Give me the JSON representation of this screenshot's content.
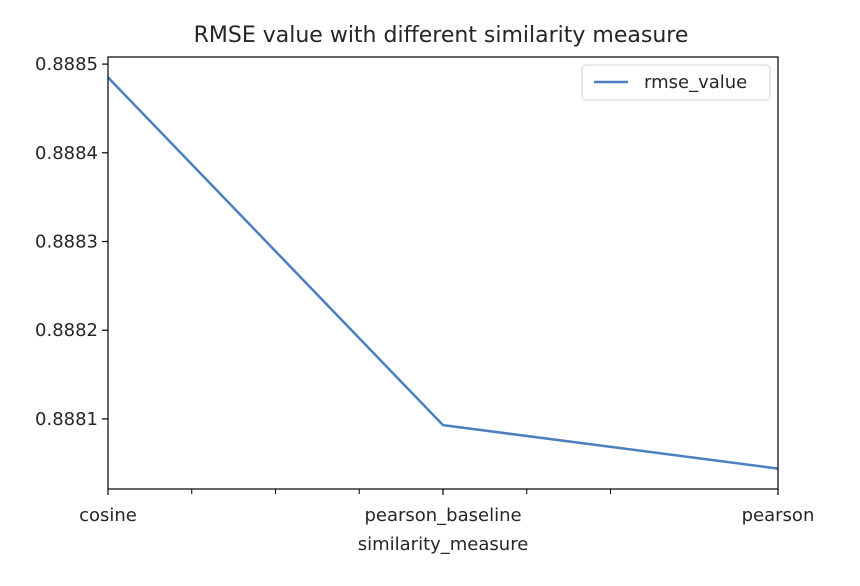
{
  "chart_data": {
    "type": "line",
    "title": "RMSE value with different similarity measure",
    "xlabel": "similarity_measure",
    "ylabel": "",
    "categories": [
      "cosine",
      "pearson_baseline",
      "pearson"
    ],
    "series": [
      {
        "name": "rmse_value",
        "values": [
          0.888485,
          0.888093,
          0.888044
        ],
        "color": "#4c7fbe"
      }
    ],
    "yticks": [
      0.8881,
      0.8882,
      0.8883,
      0.8884,
      0.8885
    ],
    "ytick_labels": [
      "0.8881",
      "0.8882",
      "0.8883",
      "0.8884",
      "0.8885"
    ],
    "ylim": [
      0.888021,
      0.888508
    ],
    "xlim": [
      0,
      2
    ],
    "minor_xticks": [
      0.5,
      1.0,
      1.5,
      2.0,
      2.5,
      3.0
    ],
    "grid": false,
    "legend_position": "top-right"
  }
}
